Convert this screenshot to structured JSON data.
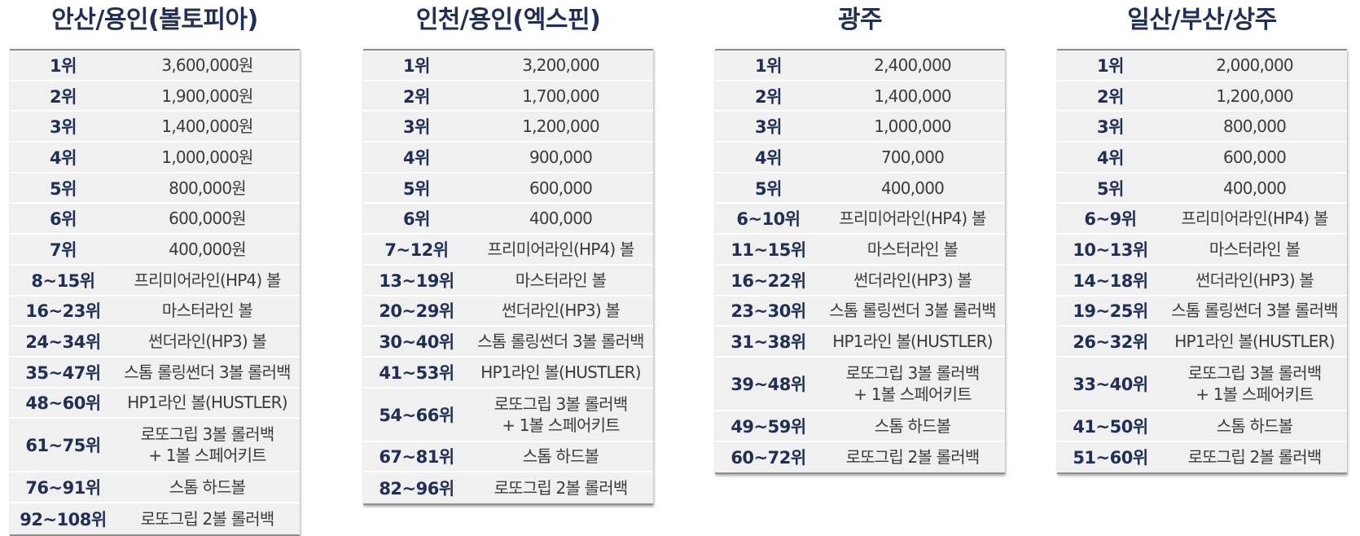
{
  "tables": [
    {
      "title": "안산/용인(볼토피아)",
      "rows": [
        {
          "rank": "1위",
          "prize": "3,600,000원"
        },
        {
          "rank": "2위",
          "prize": "1,900,000원"
        },
        {
          "rank": "3위",
          "prize": "1,400,000원"
        },
        {
          "rank": "4위",
          "prize": "1,000,000원"
        },
        {
          "rank": "5위",
          "prize": "800,000원"
        },
        {
          "rank": "6위",
          "prize": "600,000원"
        },
        {
          "rank": "7위",
          "prize": "400,000원"
        },
        {
          "rank": "8~15위",
          "prize": "프리미어라인(HP4) 볼"
        },
        {
          "rank": "16~23위",
          "prize": "마스터라인 볼"
        },
        {
          "rank": "24~34위",
          "prize": "썬더라인(HP3) 볼"
        },
        {
          "rank": "35~47위",
          "prize": "스톰 롤링썬더 3볼 롤러백"
        },
        {
          "rank": "48~60위",
          "prize": "HP1라인 볼(HUSTLER)"
        },
        {
          "rank": "61~75위",
          "prize": "로또그립 3볼 롤러백\n+ 1볼 스페어키트"
        },
        {
          "rank": "76~91위",
          "prize": "스톰 하드볼"
        },
        {
          "rank": "92~108위",
          "prize": "로또그립 2볼 롤러백"
        }
      ]
    },
    {
      "title": "인천/용인(엑스핀)",
      "rows": [
        {
          "rank": "1위",
          "prize": "3,200,000"
        },
        {
          "rank": "2위",
          "prize": "1,700,000"
        },
        {
          "rank": "3위",
          "prize": "1,200,000"
        },
        {
          "rank": "4위",
          "prize": "900,000"
        },
        {
          "rank": "5위",
          "prize": "600,000"
        },
        {
          "rank": "6위",
          "prize": "400,000"
        },
        {
          "rank": "7~12위",
          "prize": "프리미어라인(HP4) 볼"
        },
        {
          "rank": "13~19위",
          "prize": "마스터라인 볼"
        },
        {
          "rank": "20~29위",
          "prize": "썬더라인(HP3) 볼"
        },
        {
          "rank": "30~40위",
          "prize": "스톰 롤링썬더 3볼 롤러백"
        },
        {
          "rank": "41~53위",
          "prize": "HP1라인 볼(HUSTLER)"
        },
        {
          "rank": "54~66위",
          "prize": "로또그립 3볼 롤러백\n+ 1볼 스페어키트"
        },
        {
          "rank": "67~81위",
          "prize": "스톰 하드볼"
        },
        {
          "rank": "82~96위",
          "prize": "로또그립 2볼 롤러백"
        }
      ]
    },
    {
      "title": "광주",
      "rows": [
        {
          "rank": "1위",
          "prize": "2,400,000"
        },
        {
          "rank": "2위",
          "prize": "1,400,000"
        },
        {
          "rank": "3위",
          "prize": "1,000,000"
        },
        {
          "rank": "4위",
          "prize": "700,000"
        },
        {
          "rank": "5위",
          "prize": "400,000"
        },
        {
          "rank": "6~10위",
          "prize": "프리미어라인(HP4) 볼"
        },
        {
          "rank": "11~15위",
          "prize": "마스터라인 볼"
        },
        {
          "rank": "16~22위",
          "prize": "썬더라인(HP3) 볼"
        },
        {
          "rank": "23~30위",
          "prize": "스톰 롤링썬더 3볼 롤러백"
        },
        {
          "rank": "31~38위",
          "prize": "HP1라인 볼(HUSTLER)"
        },
        {
          "rank": "39~48위",
          "prize": "로또그립 3볼 롤러백\n+ 1볼 스페어키트"
        },
        {
          "rank": "49~59위",
          "prize": "스톰 하드볼"
        },
        {
          "rank": "60~72위",
          "prize": "로또그립 2볼 롤러백"
        }
      ]
    },
    {
      "title": "일산/부산/상주",
      "rows": [
        {
          "rank": "1위",
          "prize": "2,000,000"
        },
        {
          "rank": "2위",
          "prize": "1,200,000"
        },
        {
          "rank": "3위",
          "prize": "800,000"
        },
        {
          "rank": "4위",
          "prize": "600,000"
        },
        {
          "rank": "5위",
          "prize": "400,000"
        },
        {
          "rank": "6~9위",
          "prize": "프리미어라인(HP4) 볼"
        },
        {
          "rank": "10~13위",
          "prize": "마스터라인 볼"
        },
        {
          "rank": "14~18위",
          "prize": "썬더라인(HP3) 볼"
        },
        {
          "rank": "19~25위",
          "prize": "스톰 롤링썬더 3볼 롤러백"
        },
        {
          "rank": "26~32위",
          "prize": "HP1라인 볼(HUSTLER)"
        },
        {
          "rank": "33~40위",
          "prize": "로또그립 3볼 롤러백\n+ 1볼 스페어키트"
        },
        {
          "rank": "41~50위",
          "prize": "스톰 하드볼"
        },
        {
          "rank": "51~60위",
          "prize": "로또그립 2볼 롤러백"
        }
      ]
    }
  ]
}
